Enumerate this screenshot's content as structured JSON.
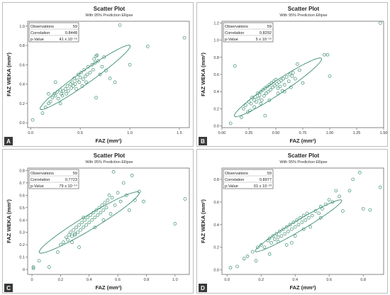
{
  "chart_data": [
    {
      "type": "scatter",
      "panel_letter": "A",
      "title": "Scatter Plot",
      "subtitle": "With 95% Prediction Ellipse",
      "xlabel": "FAZ (mm²)",
      "ylabel": "FAZ WEKA (mm²)",
      "xlim": [
        -0.03,
        1.6
      ],
      "ylim": [
        -0.05,
        1.05
      ],
      "xticks": [
        {
          "v": 0,
          "label": "0.0"
        },
        {
          "v": 0.5,
          "label": "0.5"
        },
        {
          "v": 1.0,
          "label": "1.0"
        },
        {
          "v": 1.5,
          "label": "1.5"
        }
      ],
      "yticks": [
        {
          "v": 0,
          "label": "0.0"
        },
        {
          "v": 0.2,
          "label": "0.2"
        },
        {
          "v": 0.4,
          "label": "0.4"
        },
        {
          "v": 0.6,
          "label": "0.6"
        },
        {
          "v": 0.8,
          "label": "0.8"
        },
        {
          "v": 1.0,
          "label": "1.0"
        }
      ],
      "stats": [
        {
          "label": "Observations",
          "value": "59"
        },
        {
          "label": "Correlation",
          "value": "0.8448"
        },
        {
          "label": "p-Value",
          "value": "41 x 10⁻¹⁶"
        }
      ],
      "ellipse": {
        "cx": 0.55,
        "cy": 0.47,
        "a": 1.12,
        "b": 0.13,
        "angle": 36
      },
      "points": [
        [
          0.02,
          0.03
        ],
        [
          0.12,
          0.1
        ],
        [
          0.15,
          0.16
        ],
        [
          0.18,
          0.2
        ],
        [
          0.2,
          0.22
        ],
        [
          0.22,
          0.26
        ],
        [
          0.24,
          0.3
        ],
        [
          0.25,
          0.28
        ],
        [
          0.27,
          0.32
        ],
        [
          0.28,
          0.25
        ],
        [
          0.3,
          0.34
        ],
        [
          0.31,
          0.3
        ],
        [
          0.32,
          0.28
        ],
        [
          0.33,
          0.33
        ],
        [
          0.35,
          0.35
        ],
        [
          0.36,
          0.3
        ],
        [
          0.37,
          0.38
        ],
        [
          0.38,
          0.33
        ],
        [
          0.4,
          0.4
        ],
        [
          0.41,
          0.36
        ],
        [
          0.42,
          0.42
        ],
        [
          0.43,
          0.38
        ],
        [
          0.44,
          0.46
        ],
        [
          0.45,
          0.4
        ],
        [
          0.46,
          0.35
        ],
        [
          0.47,
          0.44
        ],
        [
          0.48,
          0.5
        ],
        [
          0.49,
          0.42
        ],
        [
          0.5,
          0.47
        ],
        [
          0.51,
          0.52
        ],
        [
          0.52,
          0.38
        ],
        [
          0.53,
          0.45
        ],
        [
          0.54,
          0.55
        ],
        [
          0.55,
          0.48
        ],
        [
          0.56,
          0.42
        ],
        [
          0.57,
          0.5
        ],
        [
          0.58,
          0.58
        ],
        [
          0.6,
          0.52
        ],
        [
          0.62,
          0.6
        ],
        [
          0.63,
          0.55
        ],
        [
          0.64,
          0.66
        ],
        [
          0.65,
          0.62
        ],
        [
          0.66,
          0.69
        ],
        [
          0.67,
          0.7
        ],
        [
          0.68,
          0.64
        ],
        [
          0.7,
          0.5
        ],
        [
          0.72,
          0.58
        ],
        [
          0.74,
          0.68
        ],
        [
          0.76,
          0.54
        ],
        [
          0.8,
          0.46
        ],
        [
          0.85,
          0.42
        ],
        [
          0.9,
          1.01
        ],
        [
          1.0,
          0.6
        ],
        [
          1.18,
          0.79
        ],
        [
          1.55,
          0.88
        ],
        [
          0.66,
          0.26
        ],
        [
          0.3,
          0.2
        ],
        [
          0.18,
          0.3
        ],
        [
          0.25,
          0.42
        ]
      ]
    },
    {
      "type": "scatter",
      "panel_letter": "B",
      "title": "Scatter Plot",
      "subtitle": "With 95% Prediction Ellipse",
      "xlabel": "FAZ (mm²)",
      "ylabel": "FAZ WEKA (mm²)",
      "xlim": [
        0.0,
        1.5
      ],
      "ylim": [
        -0.02,
        1.22
      ],
      "xticks": [
        {
          "v": 0,
          "label": "0.00"
        },
        {
          "v": 0.25,
          "label": "0.25"
        },
        {
          "v": 0.5,
          "label": "0.50"
        },
        {
          "v": 0.75,
          "label": "0.75"
        },
        {
          "v": 1.0,
          "label": "1.00"
        },
        {
          "v": 1.25,
          "label": "1.25"
        },
        {
          "v": 1.5,
          "label": "1.50"
        }
      ],
      "yticks": [
        {
          "v": 0,
          "label": "0.0"
        },
        {
          "v": 0.2,
          "label": "0.2"
        },
        {
          "v": 0.4,
          "label": "0.4"
        },
        {
          "v": 0.6,
          "label": "0.6"
        },
        {
          "v": 0.8,
          "label": "0.8"
        },
        {
          "v": 1.0,
          "label": "1.0"
        },
        {
          "v": 1.2,
          "label": "1.2"
        }
      ],
      "stats": [
        {
          "label": "Observations",
          "value": "59"
        },
        {
          "label": "Correlation",
          "value": "0.8292"
        },
        {
          "label": "p-Value",
          "value": "5 x 10⁻¹⁶"
        }
      ],
      "ellipse": {
        "cx": 0.52,
        "cy": 0.45,
        "a": 1.05,
        "b": 0.14,
        "angle": 40
      },
      "points": [
        [
          0.08,
          0.03
        ],
        [
          0.12,
          0.7
        ],
        [
          0.18,
          0.1
        ],
        [
          0.2,
          0.2
        ],
        [
          0.22,
          0.24
        ],
        [
          0.25,
          0.28
        ],
        [
          0.27,
          0.26
        ],
        [
          0.28,
          0.33
        ],
        [
          0.3,
          0.3
        ],
        [
          0.31,
          0.34
        ],
        [
          0.32,
          0.28
        ],
        [
          0.33,
          0.38
        ],
        [
          0.34,
          0.32
        ],
        [
          0.35,
          0.36
        ],
        [
          0.36,
          0.4
        ],
        [
          0.37,
          0.3
        ],
        [
          0.38,
          0.42
        ],
        [
          0.39,
          0.35
        ],
        [
          0.4,
          0.44
        ],
        [
          0.41,
          0.38
        ],
        [
          0.42,
          0.46
        ],
        [
          0.43,
          0.4
        ],
        [
          0.44,
          0.48
        ],
        [
          0.45,
          0.42
        ],
        [
          0.46,
          0.5
        ],
        [
          0.47,
          0.45
        ],
        [
          0.48,
          0.52
        ],
        [
          0.49,
          0.47
        ],
        [
          0.5,
          0.54
        ],
        [
          0.51,
          0.49
        ],
        [
          0.52,
          0.38
        ],
        [
          0.53,
          0.51
        ],
        [
          0.54,
          0.46
        ],
        [
          0.55,
          0.53
        ],
        [
          0.56,
          0.41
        ],
        [
          0.57,
          0.55
        ],
        [
          0.58,
          0.48
        ],
        [
          0.6,
          0.57
        ],
        [
          0.62,
          0.52
        ],
        [
          0.63,
          0.6
        ],
        [
          0.64,
          0.45
        ],
        [
          0.65,
          0.58
        ],
        [
          0.66,
          0.62
        ],
        [
          0.68,
          0.55
        ],
        [
          0.7,
          0.72
        ],
        [
          0.72,
          0.65
        ],
        [
          0.75,
          0.5
        ],
        [
          0.95,
          0.83
        ],
        [
          0.98,
          0.83
        ],
        [
          1.0,
          0.58
        ],
        [
          1.47,
          1.2
        ],
        [
          0.4,
          0.12
        ],
        [
          0.3,
          0.22
        ],
        [
          0.26,
          0.18
        ],
        [
          0.44,
          0.3
        ],
        [
          0.52,
          0.44
        ],
        [
          0.36,
          0.26
        ],
        [
          0.58,
          0.4
        ],
        [
          0.24,
          0.16
        ]
      ]
    },
    {
      "type": "scatter",
      "panel_letter": "C",
      "title": "Scatter Plot",
      "subtitle": "With 95% Prediction Ellipse",
      "xlabel": "FAZ (mm²)",
      "ylabel": "FAZ WEKA (mm²)",
      "xlim": [
        -0.03,
        1.1
      ],
      "ylim": [
        -0.04,
        0.82
      ],
      "xticks": [
        {
          "v": 0,
          "label": "0"
        },
        {
          "v": 0.2,
          "label": "0.2"
        },
        {
          "v": 0.4,
          "label": "0.4"
        },
        {
          "v": 0.6,
          "label": "0.6"
        },
        {
          "v": 0.8,
          "label": "0.8"
        },
        {
          "v": 1.0,
          "label": "1.0"
        }
      ],
      "yticks": [
        {
          "v": 0,
          "label": "0"
        },
        {
          "v": 0.1,
          "label": "0.1"
        },
        {
          "v": 0.2,
          "label": "0.2"
        },
        {
          "v": 0.3,
          "label": "0.3"
        },
        {
          "v": 0.4,
          "label": "0.4"
        },
        {
          "v": 0.5,
          "label": "0.5"
        },
        {
          "v": 0.6,
          "label": "0.6"
        },
        {
          "v": 0.7,
          "label": "0.7"
        },
        {
          "v": 0.8,
          "label": "0.8"
        }
      ],
      "stats": [
        {
          "label": "Observations",
          "value": "59"
        },
        {
          "label": "Correlation",
          "value": "0.7723"
        },
        {
          "label": "p-Value",
          "value": "79 x 10⁻¹⁴"
        }
      ],
      "ellipse": {
        "cx": 0.4,
        "cy": 0.38,
        "a": 0.85,
        "b": 0.11,
        "angle": 35
      },
      "points": [
        [
          0.01,
          0.01
        ],
        [
          0.01,
          0.02
        ],
        [
          0.05,
          0.07
        ],
        [
          0.12,
          0.02
        ],
        [
          0.18,
          0.14
        ],
        [
          0.2,
          0.2
        ],
        [
          0.22,
          0.22
        ],
        [
          0.24,
          0.26
        ],
        [
          0.25,
          0.24
        ],
        [
          0.26,
          0.28
        ],
        [
          0.27,
          0.3
        ],
        [
          0.28,
          0.27
        ],
        [
          0.29,
          0.32
        ],
        [
          0.3,
          0.29
        ],
        [
          0.31,
          0.34
        ],
        [
          0.32,
          0.3
        ],
        [
          0.33,
          0.36
        ],
        [
          0.34,
          0.32
        ],
        [
          0.35,
          0.38
        ],
        [
          0.36,
          0.34
        ],
        [
          0.37,
          0.4
        ],
        [
          0.38,
          0.36
        ],
        [
          0.39,
          0.42
        ],
        [
          0.4,
          0.38
        ],
        [
          0.41,
          0.44
        ],
        [
          0.42,
          0.4
        ],
        [
          0.43,
          0.46
        ],
        [
          0.44,
          0.42
        ],
        [
          0.45,
          0.48
        ],
        [
          0.46,
          0.44
        ],
        [
          0.47,
          0.5
        ],
        [
          0.48,
          0.46
        ],
        [
          0.49,
          0.52
        ],
        [
          0.5,
          0.48
        ],
        [
          0.51,
          0.54
        ],
        [
          0.52,
          0.5
        ],
        [
          0.53,
          0.56
        ],
        [
          0.54,
          0.6
        ],
        [
          0.55,
          0.45
        ],
        [
          0.56,
          0.58
        ],
        [
          0.57,
          0.79
        ],
        [
          0.58,
          0.52
        ],
        [
          0.6,
          0.62
        ],
        [
          0.62,
          0.55
        ],
        [
          0.64,
          0.7
        ],
        [
          0.66,
          0.6
        ],
        [
          0.68,
          0.48
        ],
        [
          0.7,
          0.76
        ],
        [
          0.72,
          0.56
        ],
        [
          0.75,
          0.63
        ],
        [
          0.78,
          0.55
        ],
        [
          1.0,
          0.37
        ],
        [
          1.07,
          0.57
        ],
        [
          0.3,
          0.28
        ],
        [
          0.36,
          0.42
        ],
        [
          0.44,
          0.34
        ],
        [
          0.28,
          0.22
        ],
        [
          0.5,
          0.4
        ],
        [
          0.33,
          0.18
        ]
      ]
    },
    {
      "type": "scatter",
      "panel_letter": "D",
      "title": "Scatter Plot",
      "subtitle": "With 95% Prediction Ellipse",
      "xlabel": "FAZ (mm²)",
      "ylabel": "FAZ WEKA (mm²)",
      "xlim": [
        -0.03,
        0.92
      ],
      "ylim": [
        -0.04,
        0.9
      ],
      "xticks": [
        {
          "v": 0,
          "label": "0.0"
        },
        {
          "v": 0.2,
          "label": "0.2"
        },
        {
          "v": 0.4,
          "label": "0.4"
        },
        {
          "v": 0.6,
          "label": "0.6"
        },
        {
          "v": 0.8,
          "label": "0.8"
        }
      ],
      "yticks": [
        {
          "v": 0,
          "label": "0.0"
        },
        {
          "v": 0.2,
          "label": "0.2"
        },
        {
          "v": 0.4,
          "label": "0.4"
        },
        {
          "v": 0.6,
          "label": "0.6"
        },
        {
          "v": 0.8,
          "label": "0.8"
        }
      ],
      "stats": [
        {
          "label": "Observations",
          "value": "59"
        },
        {
          "label": "Correlation",
          "value": "0.8977"
        },
        {
          "label": "p-Value",
          "value": "61 x 10⁻²³"
        }
      ],
      "ellipse": {
        "cx": 0.42,
        "cy": 0.39,
        "a": 0.68,
        "b": 0.08,
        "angle": 42
      },
      "points": [
        [
          0.02,
          0.02
        ],
        [
          0.06,
          0.03
        ],
        [
          0.1,
          0.1
        ],
        [
          0.12,
          0.12
        ],
        [
          0.15,
          0.16
        ],
        [
          0.17,
          0.08
        ],
        [
          0.18,
          0.2
        ],
        [
          0.2,
          0.22
        ],
        [
          0.22,
          0.2
        ],
        [
          0.24,
          0.26
        ],
        [
          0.25,
          0.28
        ],
        [
          0.26,
          0.24
        ],
        [
          0.27,
          0.3
        ],
        [
          0.28,
          0.27
        ],
        [
          0.29,
          0.32
        ],
        [
          0.3,
          0.29
        ],
        [
          0.31,
          0.34
        ],
        [
          0.32,
          0.3
        ],
        [
          0.33,
          0.36
        ],
        [
          0.34,
          0.32
        ],
        [
          0.35,
          0.38
        ],
        [
          0.36,
          0.34
        ],
        [
          0.37,
          0.4
        ],
        [
          0.38,
          0.36
        ],
        [
          0.39,
          0.42
        ],
        [
          0.4,
          0.38
        ],
        [
          0.41,
          0.44
        ],
        [
          0.42,
          0.4
        ],
        [
          0.43,
          0.46
        ],
        [
          0.44,
          0.42
        ],
        [
          0.45,
          0.48
        ],
        [
          0.46,
          0.44
        ],
        [
          0.47,
          0.5
        ],
        [
          0.48,
          0.46
        ],
        [
          0.49,
          0.38
        ],
        [
          0.5,
          0.48
        ],
        [
          0.52,
          0.52
        ],
        [
          0.54,
          0.5
        ],
        [
          0.55,
          0.56
        ],
        [
          0.56,
          0.54
        ],
        [
          0.58,
          0.58
        ],
        [
          0.6,
          0.62
        ],
        [
          0.62,
          0.6
        ],
        [
          0.64,
          0.7
        ],
        [
          0.66,
          0.65
        ],
        [
          0.68,
          0.52
        ],
        [
          0.72,
          0.7
        ],
        [
          0.74,
          0.8
        ],
        [
          0.78,
          0.86
        ],
        [
          0.8,
          0.54
        ],
        [
          0.84,
          0.53
        ],
        [
          0.9,
          0.73
        ],
        [
          0.35,
          0.22
        ],
        [
          0.4,
          0.3
        ],
        [
          0.3,
          0.25
        ],
        [
          0.45,
          0.36
        ],
        [
          0.25,
          0.14
        ],
        [
          0.38,
          0.24
        ],
        [
          0.55,
          0.46
        ]
      ]
    }
  ]
}
